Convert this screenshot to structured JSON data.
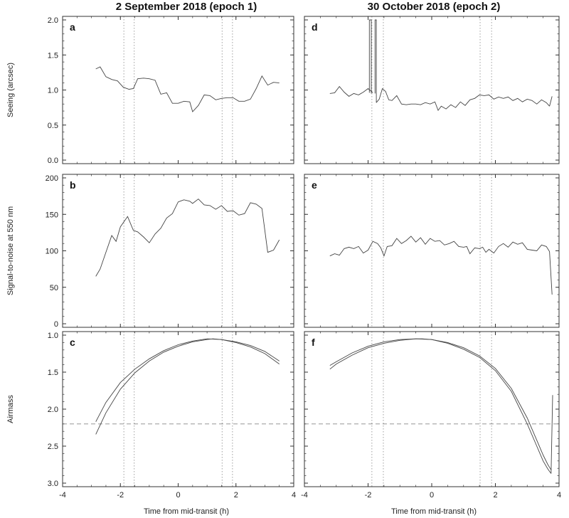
{
  "titles": {
    "left": "2 September 2018 (epoch 1)",
    "right": "30 October 2018 (epoch 2)"
  },
  "xlabel": "Time from mid-transit (h)",
  "chart_data": [
    {
      "id": "a",
      "type": "line",
      "row": 0,
      "col": 0,
      "label": "a",
      "ylabel": "Seeing (arcsec)",
      "xlim": [
        -4,
        4
      ],
      "ylim": [
        0,
        2.0
      ],
      "yticks": [
        0.0,
        0.5,
        1.0,
        1.5,
        2.0
      ],
      "ytick_labels": [
        "0.0",
        "0.5",
        "1.0",
        "1.5",
        "2.0"
      ],
      "xticks": [
        -4,
        -2,
        0,
        2,
        4
      ],
      "xtick_labels": [],
      "yreverse": false,
      "vlines": [
        -1.88,
        -1.52,
        1.52,
        1.88
      ],
      "series": [
        {
          "x": [
            -2.85,
            -2.7,
            -2.5,
            -2.3,
            -2.1,
            -1.9,
            -1.7,
            -1.55,
            -1.4,
            -1.2,
            -1.0,
            -0.8,
            -0.6,
            -0.4,
            -0.2,
            0.0,
            0.2,
            0.4,
            0.5,
            0.7,
            0.9,
            1.1,
            1.3,
            1.5,
            1.7,
            1.9,
            2.1,
            2.3,
            2.5,
            2.7,
            2.9,
            3.1,
            3.3,
            3.5
          ],
          "y": [
            1.3,
            1.33,
            1.19,
            1.15,
            1.13,
            1.04,
            1.01,
            1.02,
            1.16,
            1.17,
            1.16,
            1.14,
            0.94,
            0.96,
            0.81,
            0.81,
            0.84,
            0.83,
            0.69,
            0.78,
            0.93,
            0.92,
            0.86,
            0.88,
            0.89,
            0.89,
            0.84,
            0.84,
            0.87,
            1.02,
            1.2,
            1.07,
            1.11,
            1.1
          ]
        }
      ]
    },
    {
      "id": "b",
      "type": "line",
      "row": 1,
      "col": 0,
      "label": "b",
      "ylabel": "Signal-to-noise at 550 nm",
      "xlim": [
        -4,
        4
      ],
      "ylim": [
        0,
        200
      ],
      "yticks": [
        0,
        50,
        100,
        150,
        200
      ],
      "ytick_labels": [
        "0",
        "50",
        "100",
        "150",
        "200"
      ],
      "xticks": [
        -4,
        -2,
        0,
        2,
        4
      ],
      "xtick_labels": [],
      "yreverse": false,
      "vlines": [
        -1.88,
        -1.52,
        1.52,
        1.88
      ],
      "series": [
        {
          "x": [
            -2.85,
            -2.7,
            -2.5,
            -2.3,
            -2.15,
            -2.0,
            -1.75,
            -1.55,
            -1.4,
            -1.2,
            -1.0,
            -0.8,
            -0.6,
            -0.4,
            -0.2,
            0.0,
            0.2,
            0.4,
            0.5,
            0.7,
            0.9,
            1.1,
            1.3,
            1.5,
            1.7,
            1.9,
            2.1,
            2.3,
            2.5,
            2.7,
            2.9,
            3.1,
            3.3,
            3.5
          ],
          "y": [
            65,
            75,
            98,
            121,
            113,
            133,
            147,
            128,
            126,
            119,
            111,
            123,
            131,
            145,
            151,
            167,
            170,
            168,
            165,
            171,
            163,
            162,
            157,
            162,
            154,
            155,
            149,
            151,
            166,
            164,
            158,
            98,
            101,
            115
          ]
        }
      ]
    },
    {
      "id": "c",
      "type": "line",
      "row": 2,
      "col": 0,
      "label": "c",
      "ylabel": "Airmass",
      "xlim": [
        -4,
        4
      ],
      "ylim": [
        1.0,
        3.0
      ],
      "yticks": [
        1.0,
        1.5,
        2.0,
        2.5,
        3.0
      ],
      "ytick_labels": [
        "1.0",
        "1.5",
        "2.0",
        "2.5",
        "3.0"
      ],
      "xticks": [
        -4,
        -2,
        0,
        2,
        4
      ],
      "xtick_labels": [
        "-4",
        "-2",
        "0",
        "2",
        "4"
      ],
      "yreverse": true,
      "vlines": [
        -1.88,
        -1.52,
        1.52,
        1.88
      ],
      "hline": 2.2,
      "series": [
        {
          "x": [
            -2.85,
            -2.5,
            -2.0,
            -1.5,
            -1.0,
            -0.5,
            0.0,
            0.5,
            1.0,
            1.5,
            2.0,
            2.5,
            3.0,
            3.5
          ],
          "y": [
            2.17,
            1.91,
            1.64,
            1.46,
            1.32,
            1.21,
            1.13,
            1.08,
            1.05,
            1.06,
            1.09,
            1.14,
            1.22,
            1.35
          ]
        },
        {
          "x": [
            -2.85,
            -2.5,
            -2.0,
            -1.5,
            -1.0,
            -0.5,
            0.0,
            0.5,
            1.0,
            1.2,
            1.5,
            2.0,
            2.5,
            3.0,
            3.5
          ],
          "y": [
            2.34,
            2.05,
            1.73,
            1.51,
            1.35,
            1.23,
            1.15,
            1.09,
            1.06,
            1.05,
            1.06,
            1.1,
            1.16,
            1.25,
            1.39
          ]
        }
      ]
    },
    {
      "id": "d",
      "type": "line",
      "row": 0,
      "col": 1,
      "label": "d",
      "ylabel": "",
      "xlim": [
        -4,
        4
      ],
      "ylim": [
        0,
        2.0
      ],
      "yticks": [
        0.0,
        0.5,
        1.0,
        1.5,
        2.0
      ],
      "ytick_labels": [],
      "yreverse": false,
      "xticks": [
        -4,
        -2,
        0,
        2,
        4
      ],
      "xtick_labels": [],
      "vlines": [
        -1.88,
        -1.52,
        1.52,
        1.88
      ],
      "series": [
        {
          "x": [
            -3.2,
            -3.05,
            -2.9,
            -2.75,
            -2.6,
            -2.45,
            -2.3,
            -2.15,
            -2.0,
            -1.85
          ],
          "y": [
            0.95,
            0.96,
            1.05,
            0.97,
            0.91,
            0.95,
            0.93,
            0.97,
            1.02,
            0.96
          ]
        },
        {
          "x": [
            -1.96,
            -1.96,
            -1.9,
            -1.9
          ],
          "y": [
            0.96,
            2.0,
            2.0,
            0.95
          ]
        },
        {
          "x": [
            -1.78,
            -1.78,
            -1.74,
            -1.74
          ],
          "y": [
            0.95,
            2.0,
            2.0,
            0.82
          ]
        },
        {
          "x": [
            -1.74,
            -1.65,
            -1.55,
            -1.45,
            -1.35,
            -1.25,
            -1.1,
            -0.95,
            -0.8,
            -0.65,
            -0.5,
            -0.35,
            -0.2,
            -0.05,
            0.1,
            0.2,
            0.3,
            0.45,
            0.6,
            0.75,
            0.9,
            1.05,
            1.2,
            1.35,
            1.5,
            1.65,
            1.8,
            1.95,
            2.1,
            2.25,
            2.4,
            2.55,
            2.7,
            2.85,
            3.0,
            3.15,
            3.3,
            3.45,
            3.6,
            3.7
          ],
          "y": [
            0.82,
            0.87,
            1.02,
            0.98,
            0.86,
            0.85,
            0.92,
            0.8,
            0.79,
            0.8,
            0.8,
            0.79,
            0.82,
            0.8,
            0.83,
            0.71,
            0.77,
            0.73,
            0.79,
            0.75,
            0.83,
            0.78,
            0.86,
            0.88,
            0.93,
            0.92,
            0.93,
            0.87,
            0.9,
            0.88,
            0.9,
            0.85,
            0.88,
            0.83,
            0.87,
            0.85,
            0.8,
            0.86,
            0.82,
            0.77
          ]
        },
        {
          "x": [
            3.7,
            3.78
          ],
          "y": [
            0.77,
            0.91
          ]
        }
      ]
    },
    {
      "id": "e",
      "type": "line",
      "row": 1,
      "col": 1,
      "label": "e",
      "ylabel": "",
      "xlim": [
        -4,
        4
      ],
      "ylim": [
        0,
        200
      ],
      "yticks": [
        0,
        50,
        100,
        150,
        200
      ],
      "ytick_labels": [],
      "yreverse": false,
      "xticks": [
        -4,
        -2,
        0,
        2,
        4
      ],
      "xtick_labels": [],
      "vlines": [
        -1.88,
        -1.52,
        1.52,
        1.88
      ],
      "series": [
        {
          "x": [
            -3.2,
            -3.05,
            -2.9,
            -2.75,
            -2.6,
            -2.45,
            -2.3,
            -2.15,
            -2.0,
            -1.85,
            -1.7,
            -1.6,
            -1.5,
            -1.4,
            -1.25,
            -1.1,
            -0.95,
            -0.8,
            -0.65,
            -0.5,
            -0.35,
            -0.2,
            -0.05,
            0.1,
            0.25,
            0.4,
            0.55,
            0.7,
            0.85,
            1.0,
            1.1,
            1.2,
            1.35,
            1.5,
            1.6,
            1.7,
            1.8,
            1.95,
            2.1,
            2.25,
            2.4,
            2.55,
            2.7,
            2.85,
            3.0,
            3.15,
            3.3,
            3.45,
            3.6,
            3.7,
            3.78
          ],
          "y": [
            93,
            96,
            94,
            103,
            105,
            103,
            106,
            97,
            101,
            113,
            110,
            104,
            93,
            106,
            107,
            117,
            110,
            114,
            120,
            112,
            118,
            109,
            117,
            113,
            114,
            108,
            110,
            113,
            106,
            105,
            106,
            96,
            104,
            103,
            105,
            98,
            102,
            97,
            106,
            110,
            105,
            112,
            109,
            111,
            102,
            101,
            100,
            108,
            106,
            99,
            40
          ]
        }
      ]
    },
    {
      "id": "f",
      "type": "line",
      "row": 2,
      "col": 1,
      "label": "f",
      "ylabel": "",
      "xlim": [
        -4,
        4
      ],
      "ylim": [
        1.0,
        3.0
      ],
      "yticks": [
        1.0,
        1.5,
        2.0,
        2.5,
        3.0
      ],
      "ytick_labels": [],
      "yreverse": true,
      "xticks": [
        -4,
        -2,
        0,
        2,
        4
      ],
      "xtick_labels": [
        "-4",
        "-2",
        "0",
        "2",
        "4"
      ],
      "vlines": [
        -1.88,
        -1.52,
        1.52,
        1.88
      ],
      "hline": 2.2,
      "series": [
        {
          "x": [
            -3.2,
            -3.0,
            -2.5,
            -2.0,
            -1.5,
            -1.0,
            -0.5,
            0.0,
            0.5,
            1.0,
            1.5,
            2.0,
            2.5,
            3.0,
            3.3,
            3.5,
            3.65,
            3.75
          ],
          "y": [
            1.41,
            1.36,
            1.24,
            1.15,
            1.09,
            1.06,
            1.05,
            1.06,
            1.1,
            1.17,
            1.28,
            1.45,
            1.72,
            2.12,
            2.42,
            2.62,
            2.75,
            2.82
          ]
        },
        {
          "x": [
            -3.2,
            -3.0,
            -2.5,
            -2.0,
            -1.5,
            -1.0,
            -0.5,
            -0.3,
            0.0,
            0.5,
            1.0,
            1.5,
            2.0,
            2.5,
            3.0,
            3.3,
            3.5,
            3.65,
            3.75
          ],
          "y": [
            1.46,
            1.39,
            1.27,
            1.17,
            1.11,
            1.07,
            1.05,
            1.05,
            1.06,
            1.11,
            1.19,
            1.3,
            1.48,
            1.76,
            2.2,
            2.5,
            2.7,
            2.81,
            2.87
          ]
        },
        {
          "x": [
            3.75,
            3.8
          ],
          "y": [
            2.87,
            1.81
          ]
        }
      ]
    }
  ]
}
